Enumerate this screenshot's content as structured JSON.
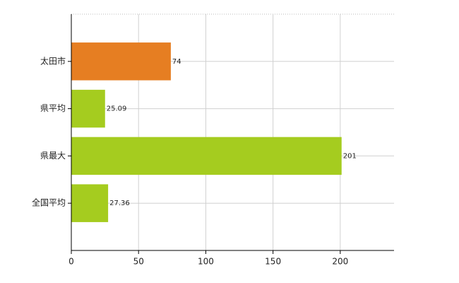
{
  "chart_data": {
    "type": "hbar",
    "categories": [
      "太田市",
      "県平均",
      "県最大",
      "全国平均"
    ],
    "values": [
      74,
      25.09,
      201,
      27.36
    ],
    "colors": [
      "#e67e22",
      "#a5cc1f",
      "#a5cc1f",
      "#a5cc1f"
    ],
    "xlim": [
      0,
      240
    ],
    "xticks": [
      0,
      50,
      100,
      150,
      200
    ],
    "grid": true
  }
}
